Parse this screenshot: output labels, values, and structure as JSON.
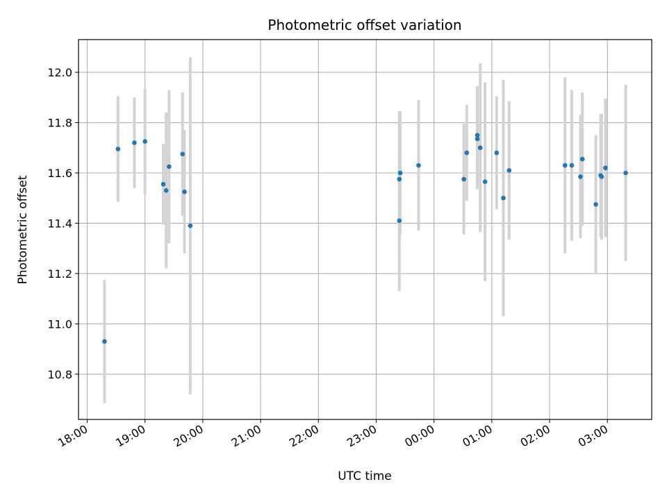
{
  "chart_data": {
    "type": "scatter",
    "title": "Photometric offset variation",
    "xlabel": "UTC time",
    "ylabel": "Photometric offset",
    "x_tick_labels": [
      "18:00",
      "19:00",
      "20:00",
      "21:00",
      "22:00",
      "23:00",
      "00:00",
      "01:00",
      "02:00",
      "03:00"
    ],
    "y_ticks": [
      10.8,
      11.0,
      11.2,
      11.4,
      11.6,
      11.8,
      12.0
    ],
    "y_tick_labels": [
      "10.8",
      "11.0",
      "11.2",
      "11.4",
      "11.6",
      "11.8",
      "12.0"
    ],
    "xlim": [
      "17:51",
      "03:46"
    ],
    "ylim": [
      10.62,
      12.13
    ],
    "grid": true,
    "marker_color": "#1f77b4",
    "errorbar_color": "#d3d3d3",
    "points": [
      {
        "time": "18:18",
        "y": 10.93,
        "err": 0.245
      },
      {
        "time": "18:32",
        "y": 11.695,
        "err": 0.21
      },
      {
        "time": "18:49",
        "y": 11.72,
        "err": 0.18
      },
      {
        "time": "19:00",
        "y": 11.725,
        "err": 0.21
      },
      {
        "time": "19:19",
        "y": 11.555,
        "err": 0.16
      },
      {
        "time": "19:22",
        "y": 11.53,
        "err": 0.31
      },
      {
        "time": "19:25",
        "y": 11.625,
        "err": 0.305
      },
      {
        "time": "19:39",
        "y": 11.675,
        "err": 0.245
      },
      {
        "time": "19:41",
        "y": 11.525,
        "err": 0.245
      },
      {
        "time": "19:47",
        "y": 11.39,
        "err": 0.67
      },
      {
        "time": "23:24",
        "y": 11.41,
        "err": 0.28
      },
      {
        "time": "23:24",
        "y": 11.575,
        "err": 0.27
      },
      {
        "time": "23:25",
        "y": 11.6,
        "err": 0.245
      },
      {
        "time": "23:44",
        "y": 11.63,
        "err": 0.26
      },
      {
        "time": "00:31",
        "y": 11.575,
        "err": 0.22
      },
      {
        "time": "00:34",
        "y": 11.68,
        "err": 0.19
      },
      {
        "time": "00:45",
        "y": 11.75,
        "err": 0.195
      },
      {
        "time": "00:45",
        "y": 11.735,
        "err": 0.2
      },
      {
        "time": "00:48",
        "y": 11.7,
        "err": 0.335
      },
      {
        "time": "00:53",
        "y": 11.565,
        "err": 0.395
      },
      {
        "time": "01:05",
        "y": 11.68,
        "err": 0.225
      },
      {
        "time": "01:12",
        "y": 11.5,
        "err": 0.47
      },
      {
        "time": "01:18",
        "y": 11.61,
        "err": 0.275
      },
      {
        "time": "02:16",
        "y": 11.63,
        "err": 0.35
      },
      {
        "time": "02:23",
        "y": 11.63,
        "err": 0.3
      },
      {
        "time": "02:32",
        "y": 11.585,
        "err": 0.245
      },
      {
        "time": "02:34",
        "y": 11.655,
        "err": 0.265
      },
      {
        "time": "02:48",
        "y": 11.475,
        "err": 0.275
      },
      {
        "time": "02:53",
        "y": 11.59,
        "err": 0.245
      },
      {
        "time": "02:54",
        "y": 11.585,
        "err": 0.25
      },
      {
        "time": "02:58",
        "y": 11.62,
        "err": 0.275
      },
      {
        "time": "03:19",
        "y": 11.6,
        "err": 0.35
      }
    ]
  }
}
